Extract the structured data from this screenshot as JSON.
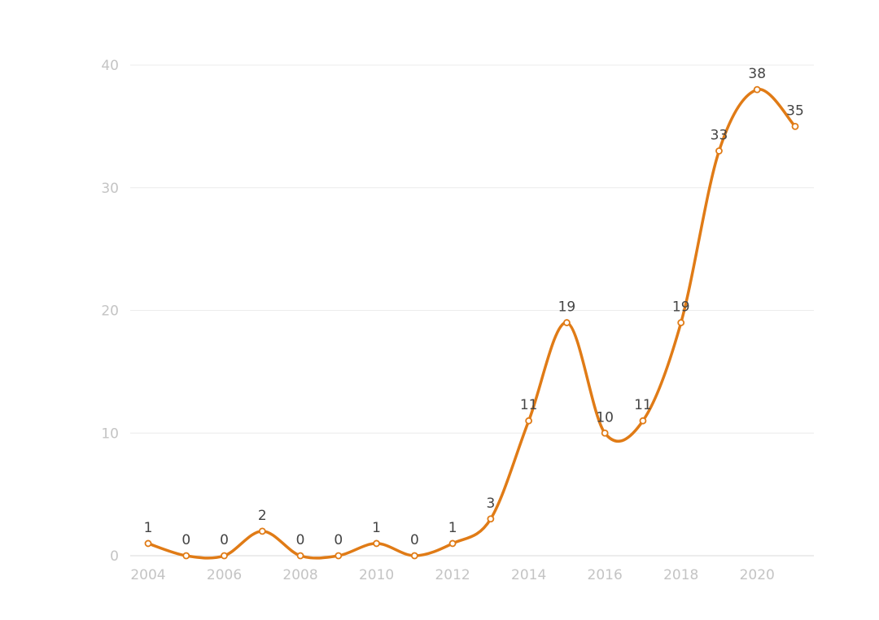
{
  "colors": {
    "series": "#e07b16",
    "grid": "#ececec",
    "tick_text": "#c4c4c4",
    "label_text": "#444444"
  },
  "chart_data": {
    "type": "line",
    "smooth": true,
    "grid": true,
    "legend": "none",
    "title": "",
    "xlabel": "",
    "ylabel": "",
    "x": [
      2004,
      2005,
      2006,
      2007,
      2008,
      2009,
      2010,
      2011,
      2012,
      2013,
      2014,
      2015,
      2016,
      2017,
      2018,
      2019,
      2020,
      2021
    ],
    "values": [
      1,
      0,
      0,
      2,
      0,
      0,
      1,
      0,
      1,
      3,
      11,
      19,
      10,
      11,
      19,
      33,
      38,
      35
    ],
    "xticks": [
      "2004",
      "2006",
      "2008",
      "2010",
      "2012",
      "2014",
      "2016",
      "2018",
      "2020"
    ],
    "yticks": [
      "0",
      "10",
      "20",
      "30",
      "40"
    ],
    "xlim": [
      2004,
      2021
    ],
    "ylim": [
      0,
      40
    ],
    "data_labels": [
      "1",
      "0",
      "0",
      "2",
      "0",
      "0",
      "1",
      "0",
      "1",
      "3",
      "11",
      "19",
      "10",
      "11",
      "19",
      "33",
      "38",
      "35"
    ]
  }
}
